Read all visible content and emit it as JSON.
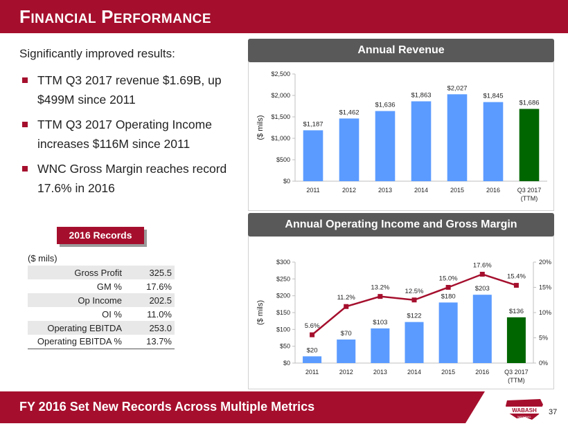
{
  "header": {
    "title_cap1": "F",
    "title_rest1": "INANCIAL",
    "title_cap2": "P",
    "title_rest2": "ERFORMANCE"
  },
  "intro": "Significantly improved results:",
  "bullets": [
    "TTM Q3 2017 revenue $1.69B, up $499M since 2011",
    "TTM Q3 2017 Operating Income increases $116M since 2011",
    "WNC Gross Margin reaches record 17.6% in 2016"
  ],
  "records": {
    "tab_label": "2016 Records",
    "unit": "($ mils)",
    "rows": [
      {
        "label": "Gross Profit",
        "value": "325.5"
      },
      {
        "label": "GM %",
        "value": "17.6%"
      },
      {
        "label": "Op Income",
        "value": "202.5"
      },
      {
        "label": "OI %",
        "value": "11.0%"
      },
      {
        "label": "Operating EBITDA",
        "value": "253.0"
      },
      {
        "label": "Operating EBITDA %",
        "value": "13.7%"
      }
    ]
  },
  "chart_data": [
    {
      "type": "bar",
      "title": "Annual Revenue",
      "ylabel": "($ mils)",
      "categories": [
        "2011",
        "2012",
        "2013",
        "2014",
        "2015",
        "2016",
        "Q3 2017|(TTM)"
      ],
      "values": [
        1187,
        1462,
        1636,
        1863,
        2027,
        1845,
        1686
      ],
      "data_labels": [
        "$1,187",
        "$1,462",
        "$1,636",
        "$1,863",
        "$2,027",
        "$1,845",
        "$1,686"
      ],
      "ylim": [
        0,
        2500
      ],
      "yticks": [
        0,
        500,
        1000,
        1500,
        2000,
        2500
      ],
      "ytick_labels": [
        "$0",
        "$500",
        "$1,000",
        "$1,500",
        "$2,000",
        "$2,500"
      ],
      "grid": false,
      "colors": {
        "bar": "#5b9bff",
        "highlight": "#006600"
      }
    },
    {
      "type": "bar",
      "title": "Annual Operating Income and Gross Margin",
      "ylabel": "($ mils)",
      "categories": [
        "2011",
        "2012",
        "2013",
        "2014",
        "2015",
        "2016",
        "Q3 2017|(TTM)"
      ],
      "series": [
        {
          "type": "bar",
          "values": [
            20,
            70,
            103,
            122,
            180,
            203,
            136
          ],
          "data_labels": [
            "$20",
            "$70",
            "$103",
            "$122",
            "$180",
            "$203",
            "$136"
          ]
        },
        {
          "type": "line",
          "values": [
            5.6,
            11.2,
            13.2,
            12.5,
            15.0,
            17.6,
            15.4
          ],
          "data_labels": [
            "5.6%",
            "11.2%",
            "13.2%",
            "12.5%",
            "15.0%",
            "17.6%",
            "15.4%"
          ]
        }
      ],
      "ylim": [
        0,
        300
      ],
      "yticks": [
        0,
        50,
        100,
        150,
        200,
        250,
        300
      ],
      "ytick_labels": [
        "$0",
        "$50",
        "$100",
        "$150",
        "$200",
        "$250",
        "$300"
      ],
      "y2lim": [
        0,
        20
      ],
      "y2ticks": [
        0,
        5,
        10,
        15,
        20
      ],
      "y2tick_labels": [
        "0%",
        "5%",
        "10%",
        "15%",
        "20%"
      ],
      "grid": false,
      "colors": {
        "bar": "#5b9bff",
        "highlight": "#006600",
        "line": "#a50f2d"
      }
    }
  ],
  "footer": {
    "text": "FY 2016 Set New Records Across Multiple Metrics",
    "page": "37"
  },
  "logo": {
    "text": "WABASH",
    "sub": "NATIONAL"
  }
}
